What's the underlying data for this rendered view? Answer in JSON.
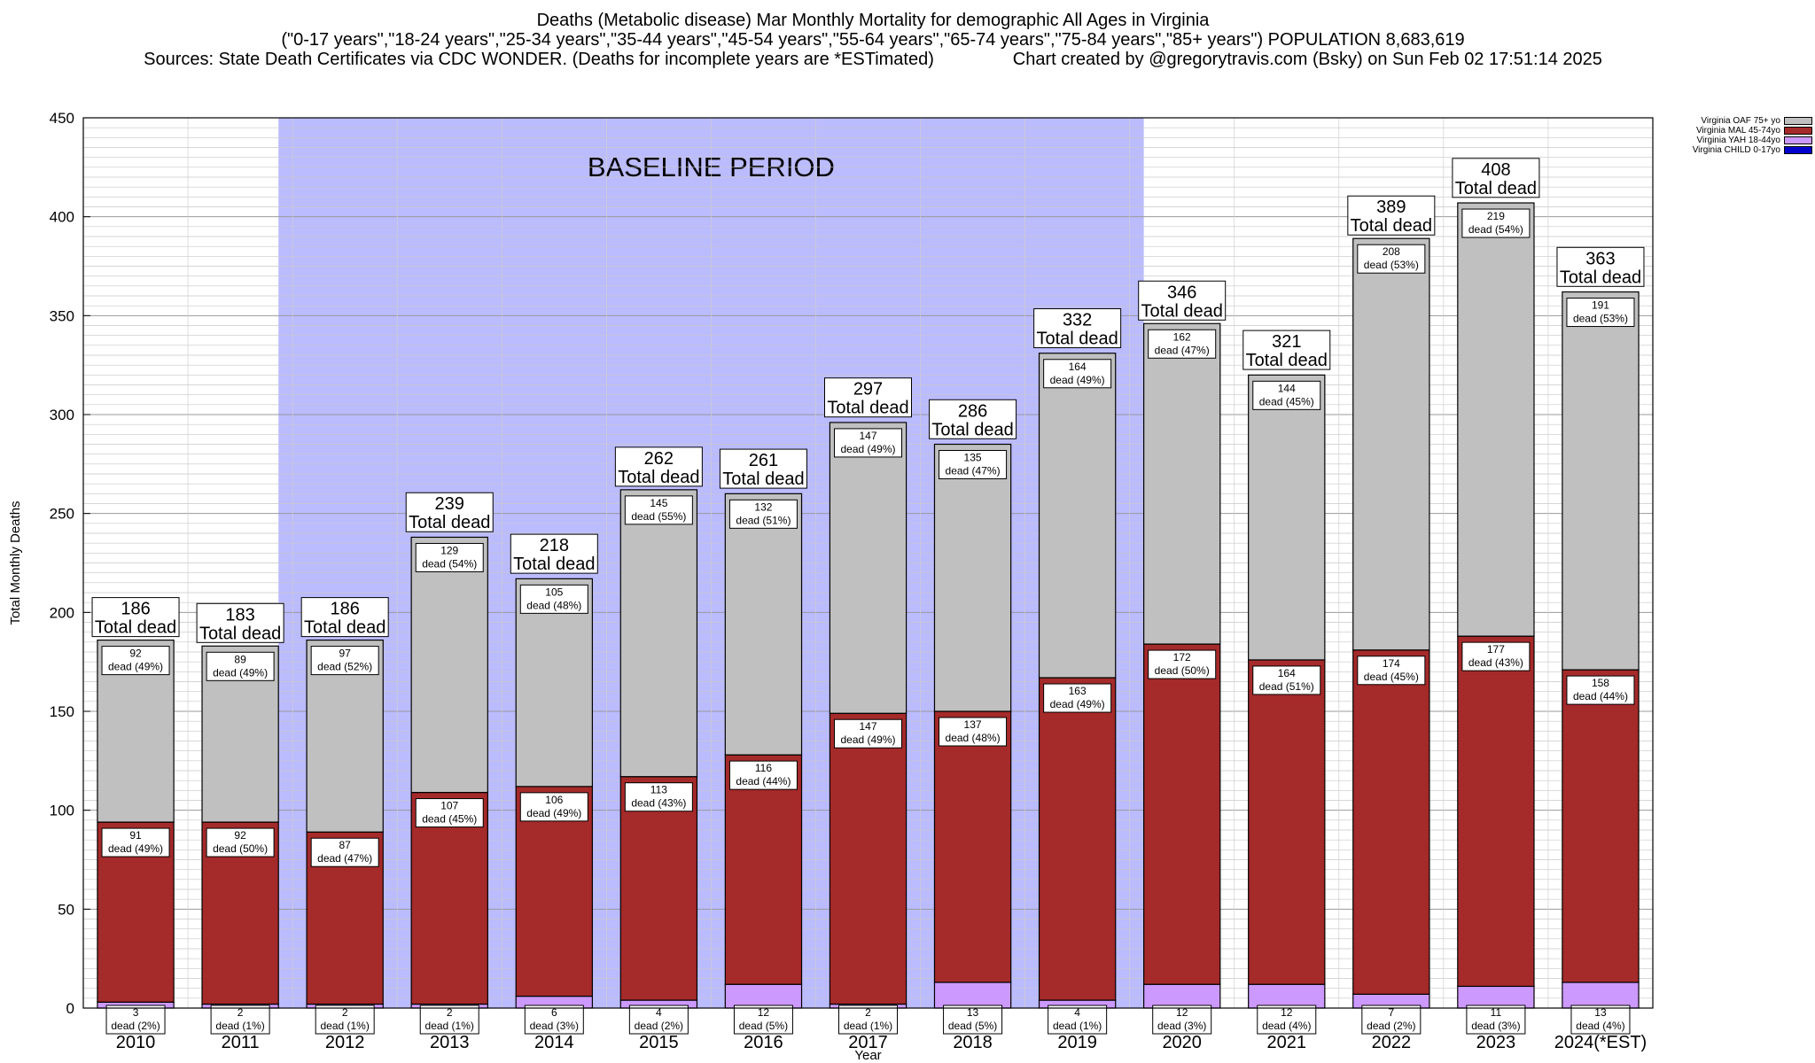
{
  "title_lines": [
    "Deaths (Metabolic disease) Mar Monthly Mortality for demographic All Ages in Virginia",
    "(\"0-17 years\",\"18-24 years\",\"25-34 years\",\"35-44 years\",\"45-54 years\",\"55-64 years\",\"65-74 years\",\"75-84 years\",\"85+ years\") POPULATION 8,683,619",
    "Sources: State Death Certificates via CDC WONDER. (Deaths for incomplete years are *ESTimated)                Chart created by @gregorytravis.com (Bsky) on Sun Feb 02 17:51:14 2025"
  ],
  "chart_data": {
    "type": "bar",
    "stacked": true,
    "xlabel": "Year",
    "ylabel": "Total Monthly Deaths",
    "ylim": [
      0,
      450
    ],
    "y_ticks": [
      0,
      50,
      100,
      150,
      200,
      250,
      300,
      350,
      400,
      450
    ],
    "grid": true,
    "legend_position": "top-right",
    "categories": [
      "2010",
      "2011",
      "2012",
      "2013",
      "2014",
      "2015",
      "2016",
      "2017",
      "2018",
      "2019",
      "2020",
      "2021",
      "2022",
      "2023",
      "2024(*EST)"
    ],
    "totals": [
      186,
      183,
      186,
      239,
      218,
      262,
      261,
      297,
      286,
      332,
      346,
      321,
      389,
      408,
      363
    ],
    "total_label_suffix": "Total dead",
    "segment_label_word": "dead",
    "series": [
      {
        "name": "Virginia CHILD 0-17yo",
        "color": "#0000cc",
        "values": [
          0,
          0,
          0,
          0,
          0,
          0,
          0,
          0,
          0,
          0,
          0,
          0,
          0,
          0,
          0
        ],
        "pct": [],
        "labeled": false
      },
      {
        "name": "Virginia YAH 18-44yo",
        "color": "#cc99ff",
        "values": [
          3,
          2,
          2,
          2,
          6,
          4,
          12,
          2,
          13,
          4,
          12,
          12,
          7,
          11,
          13
        ],
        "pct": [
          "2%",
          "1%",
          "1%",
          "1%",
          "3%",
          "2%",
          "5%",
          "1%",
          "5%",
          "1%",
          "3%",
          "4%",
          "2%",
          "3%",
          "4%"
        ],
        "labeled": true
      },
      {
        "name": "Virginia MAL 45-74yo",
        "color": "#a52a2a",
        "values": [
          91,
          92,
          87,
          107,
          106,
          113,
          116,
          147,
          137,
          163,
          172,
          164,
          174,
          177,
          158
        ],
        "pct": [
          "49%",
          "50%",
          "47%",
          "45%",
          "49%",
          "43%",
          "44%",
          "49%",
          "48%",
          "49%",
          "50%",
          "51%",
          "45%",
          "43%",
          "44%"
        ],
        "labeled": true
      },
      {
        "name": "Virginia OAF 75+ yo",
        "color": "#c0c0c0",
        "values": [
          92,
          89,
          97,
          129,
          105,
          145,
          132,
          147,
          135,
          164,
          162,
          144,
          208,
          219,
          191
        ],
        "pct": [
          "49%",
          "49%",
          "52%",
          "54%",
          "48%",
          "55%",
          "51%",
          "49%",
          "47%",
          "49%",
          "47%",
          "45%",
          "53%",
          "54%",
          "53%"
        ],
        "labeled": true
      }
    ],
    "annotations": [
      {
        "text": "BASELINE PERIOD",
        "color": "#bbbbff",
        "x_from": "2012",
        "x_to": "2019"
      }
    ]
  }
}
